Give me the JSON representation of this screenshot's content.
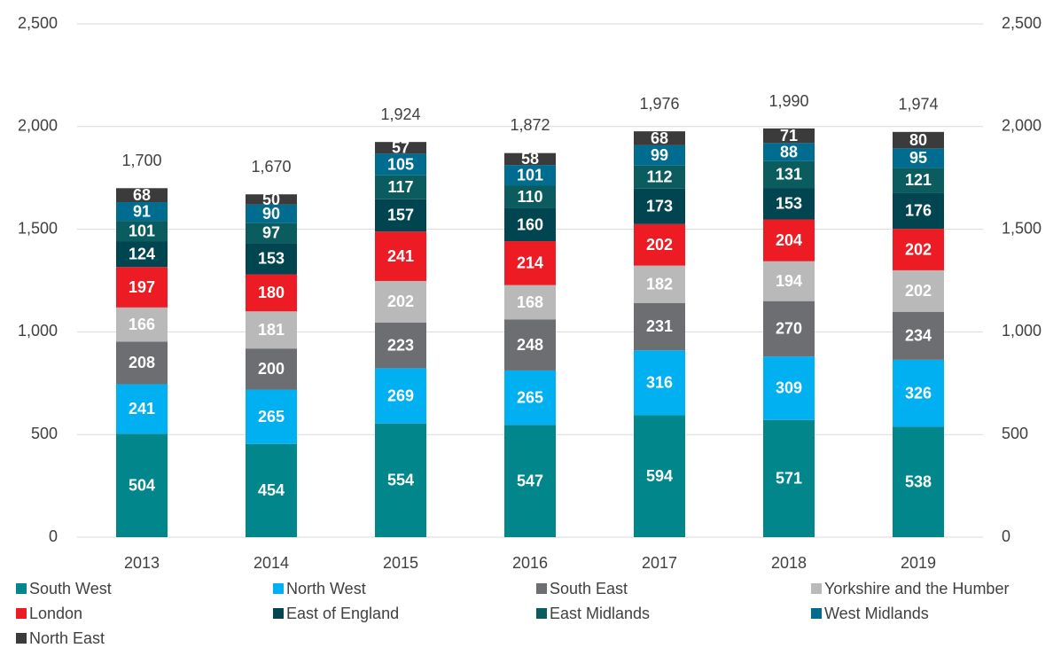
{
  "chart_data": {
    "type": "stacked_bar",
    "categories": [
      "2013",
      "2014",
      "2015",
      "2016",
      "2017",
      "2018",
      "2019"
    ],
    "series": [
      {
        "name": "South West",
        "color": "#00868b",
        "values": [
          504,
          454,
          554,
          547,
          594,
          571,
          538
        ]
      },
      {
        "name": "North West",
        "color": "#00b0f0",
        "values": [
          241,
          265,
          269,
          265,
          316,
          309,
          326
        ]
      },
      {
        "name": "South East",
        "color": "#6d6e71",
        "values": [
          208,
          200,
          223,
          248,
          231,
          270,
          234
        ]
      },
      {
        "name": "Yorkshire and the Humber",
        "color": "#b9b9b9",
        "values": [
          166,
          181,
          202,
          168,
          182,
          194,
          202
        ]
      },
      {
        "name": "London",
        "color": "#ed1c24",
        "values": [
          197,
          180,
          241,
          214,
          202,
          204,
          202
        ]
      },
      {
        "name": "East of England",
        "color": "#00454f",
        "values": [
          124,
          153,
          157,
          160,
          173,
          153,
          176
        ]
      },
      {
        "name": "East Midlands",
        "color": "#0b5c5f",
        "values": [
          101,
          97,
          117,
          110,
          112,
          131,
          121
        ]
      },
      {
        "name": "West Midlands",
        "color": "#006c8f",
        "values": [
          91,
          90,
          105,
          101,
          99,
          88,
          95
        ]
      },
      {
        "name": "North East",
        "color": "#3b3b3b",
        "values": [
          68,
          50,
          57,
          58,
          68,
          71,
          80
        ]
      }
    ],
    "totals": {
      "values": [
        1700,
        1670,
        1924,
        1872,
        1976,
        1990,
        1974
      ],
      "value_labels": [
        "1,700",
        "1,670",
        "1,924",
        "1,872",
        "1,976",
        "1,990",
        "1,974"
      ]
    },
    "ylim": [
      0,
      2500
    ],
    "yticks": [
      0,
      500,
      {
        "value": 1000,
        "label": "1,000"
      },
      {
        "value": 1500,
        "label": "1,500"
      },
      {
        "value": 2000,
        "label": "2,000"
      },
      {
        "value": 2500,
        "label": "2,500"
      }
    ],
    "y2lim": [
      0,
      2500
    ],
    "y2ticks": [
      0,
      500,
      {
        "value": 1000,
        "label": "1,000"
      },
      {
        "value": 1500,
        "label": "1,500"
      },
      {
        "value": 2000,
        "label": "2,000"
      },
      {
        "value": 2500,
        "label": "2,500"
      }
    ],
    "grid": true
  }
}
